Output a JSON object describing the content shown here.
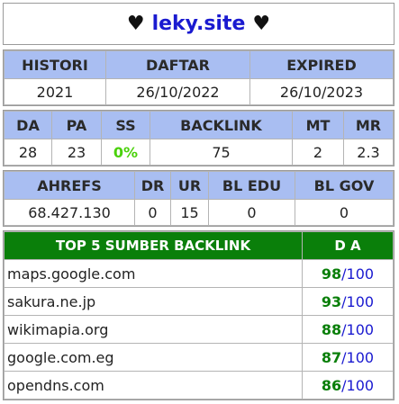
{
  "header": {
    "heart_left": "♥",
    "site": "leky.site",
    "heart_right": "♥"
  },
  "registration": {
    "columns": [
      "HISTORI",
      "DAFTAR",
      "EXPIRED"
    ],
    "values": [
      "2021",
      "26/10/2022",
      "26/10/2023"
    ]
  },
  "metrics": {
    "columns": [
      "DA",
      "PA",
      "SS",
      "BACKLINK",
      "MT",
      "MR"
    ],
    "values": [
      "28",
      "23",
      "0%",
      "75",
      "2",
      "2.3"
    ]
  },
  "ahrefs": {
    "columns": [
      "AHREFS",
      "DR",
      "UR",
      "BL EDU",
      "BL GOV"
    ],
    "values": [
      "68.427.130",
      "0",
      "15",
      "0",
      "0"
    ]
  },
  "backlinks": {
    "title": "TOP 5 SUMBER BACKLINK",
    "da_header": "D A",
    "rows": [
      {
        "domain": "maps.google.com",
        "da": "98",
        "max": "/100"
      },
      {
        "domain": "sakura.ne.jp",
        "da": "93",
        "max": "/100"
      },
      {
        "domain": "wikimapia.org",
        "da": "88",
        "max": "/100"
      },
      {
        "domain": "google.com.eg",
        "da": "87",
        "max": "/100"
      },
      {
        "domain": "opendns.com",
        "da": "86",
        "max": "/100"
      }
    ]
  },
  "colors": {
    "header_bg": "#a9bef2",
    "backlink_header_bg": "#0a7f0a",
    "site_link": "#1a1ad0",
    "ss_value": "#4ad10b"
  }
}
